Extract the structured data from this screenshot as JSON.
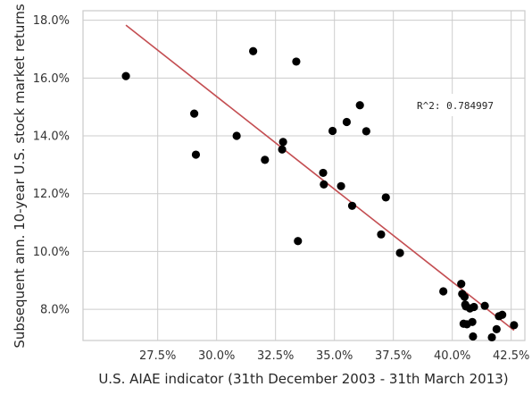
{
  "chart_data": {
    "type": "scatter",
    "xlabel": "U.S. AIAE indicator (31th December 2003 - 31th March 2013)",
    "ylabel": "Subsequent ann. 10-year U.S. stock market returns",
    "xlim": [
      0.2433,
      0.4308
    ],
    "ylim": [
      0.0692,
      0.1833
    ],
    "x_ticks": [
      0.275,
      0.3,
      0.325,
      0.35,
      0.375,
      0.4,
      0.425
    ],
    "x_tick_labels": [
      "27.5%",
      "30.0%",
      "32.5%",
      "35.0%",
      "37.5%",
      "40.0%",
      "42.5%"
    ],
    "y_ticks": [
      0.08,
      0.1,
      0.12,
      0.14,
      0.16,
      0.18
    ],
    "y_tick_labels": [
      "8.0%",
      "10.0%",
      "12.0%",
      "14.0%",
      "16.0%",
      "18.0%"
    ],
    "grid": true,
    "points": {
      "color": "#000000",
      "x": [
        0.2615,
        0.2905,
        0.2912,
        0.3085,
        0.3205,
        0.3155,
        0.3278,
        0.3282,
        0.3338,
        0.3345,
        0.3452,
        0.3455,
        0.3492,
        0.3528,
        0.3552,
        0.3575,
        0.3608,
        0.3635,
        0.3698,
        0.3718,
        0.3778,
        0.3962,
        0.4038,
        0.4042,
        0.4048,
        0.4052,
        0.4055,
        0.4058,
        0.4062,
        0.4075,
        0.4085,
        0.4088,
        0.4092,
        0.4138,
        0.4168,
        0.4188,
        0.4198,
        0.4212,
        0.4262
      ],
      "y": [
        0.1607,
        0.1477,
        0.1335,
        0.14,
        0.1317,
        0.1693,
        0.1353,
        0.1379,
        0.1657,
        0.1036,
        0.1272,
        0.1232,
        0.1417,
        0.1226,
        0.1448,
        0.1158,
        0.1506,
        0.1416,
        0.1059,
        0.1187,
        0.0995,
        0.0862,
        0.0888,
        0.0853,
        0.075,
        0.0843,
        0.0816,
        0.081,
        0.0748,
        0.0803,
        0.0756,
        0.0706,
        0.0808,
        0.0812,
        0.0703,
        0.0731,
        0.0776,
        0.0781,
        0.0745
      ]
    },
    "fit_line": {
      "color": "#c44e52",
      "x": [
        0.2615,
        0.4262
      ],
      "y": [
        0.1783,
        0.0727
      ]
    },
    "annotation": "R^2: 0.784997"
  }
}
